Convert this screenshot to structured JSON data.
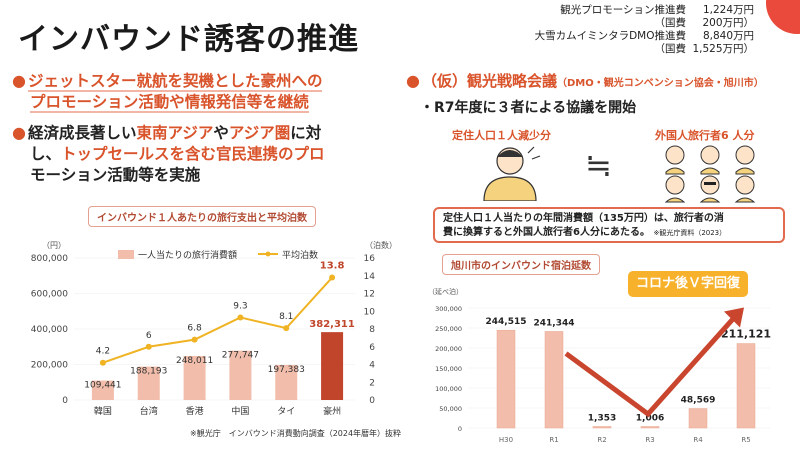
{
  "title": "インバウンド誘客の推進",
  "budget": [
    {
      "label": "観光プロモーション推進費",
      "value": "1,224万円"
    },
    {
      "label": "（国費",
      "value": "200万円）"
    },
    {
      "label": "大雪カムイミンタラDMO推進費",
      "value": "8,840万円"
    },
    {
      "label": "（国費",
      "value": "1,525万円）"
    }
  ],
  "bullets": [
    {
      "line1": "ジェットスター就航を契機とした豪州への",
      "line2": "プロモーション活動や情報発信等を継続"
    },
    {
      "pre": "経済成長著しい",
      "hl1": "東南アジア",
      "mid": "や",
      "hl2": "アジア圏",
      "post": "に対",
      "line2a": "し、",
      "line2hl": "トップセールスを含む官民連携のプロ",
      "line3": "モーション活動等を実施"
    }
  ],
  "right": {
    "head": "（仮）観光戦略会議",
    "head_note": "（DMO・観光コンベンション協会・旭川市）",
    "sub": "・R7年度に３者による協議を開始",
    "left_label": "定住人口１人減少分",
    "right_label": "外国人旅行者6 人分",
    "equiv": "≒",
    "info_line1": "定住人口１人当たりの年間消費額（135万円）は、旅行者の消",
    "info_line2": "費に換算すると外国人旅行者6人分にあたる。",
    "info_src": "※観光庁資料（2023）"
  },
  "chart_data": [
    {
      "type": "bar",
      "title": "インバウンド１人あたりの旅行支出と平均泊数",
      "categories": [
        "韓国",
        "台湾",
        "香港",
        "中国",
        "タイ",
        "豪州"
      ],
      "series": [
        {
          "name": "一人当たりの旅行消費額",
          "values": [
            109441,
            188193,
            248011,
            277747,
            197383,
            382311
          ],
          "labels": [
            "109,441",
            "188,193",
            "248,011",
            "277,747",
            "197,383",
            "382,311"
          ]
        },
        {
          "name": "平均泊数",
          "type": "line",
          "values": [
            4.2,
            6,
            6.8,
            9.3,
            8.1,
            13.8
          ]
        }
      ],
      "ylabel": "（円）",
      "y2label": "（泊数）",
      "yticks": [
        "0",
        "200,000",
        "400,000",
        "600,000",
        "800,000"
      ],
      "y2ticks": [
        "0",
        "2",
        "4",
        "6",
        "8",
        "10",
        "12",
        "14",
        "16"
      ],
      "ylim": [
        0,
        800000
      ],
      "y2lim": [
        0,
        16
      ],
      "footnote": "※観光庁　インバウンド消費動向調査（2024年暦年）抜粋",
      "colors": {
        "bar": "#f2bdaa",
        "highlight": "#c0452a",
        "line": "#f0b323"
      }
    },
    {
      "type": "bar",
      "title": "旭川市のインバウンド宿泊延数",
      "categories": [
        "H30",
        "R1",
        "R2",
        "R3",
        "R4",
        "R5"
      ],
      "values": [
        244515,
        241344,
        1353,
        1006,
        48569,
        211121
      ],
      "labels": [
        "244,515",
        "241,344",
        "1,353",
        "1,006",
        "48,569",
        "211,121"
      ],
      "ylabel": "（延べ泊）",
      "yticks": [
        "0",
        "50,000",
        "100,000",
        "150,000",
        "200,000",
        "250,000",
        "300,000"
      ],
      "ylim": [
        0,
        300000
      ],
      "annotation": "コロナ後Ｖ字回復",
      "colors": {
        "bar": "#f2bdaa",
        "arrow": "#c9452e"
      }
    }
  ]
}
